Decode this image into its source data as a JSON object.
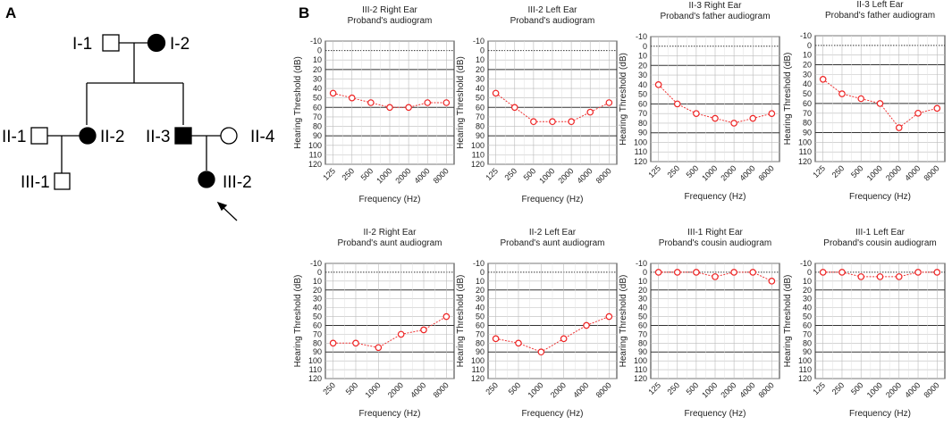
{
  "panels": {
    "a": "A",
    "b": "B"
  },
  "pedigree": {
    "labels": {
      "I1": "I-1",
      "I2": "I-2",
      "II1": "II-1",
      "II2": "II-2",
      "II3": "II-3",
      "II4": "II-4",
      "III1": "III-1",
      "III2": "III-2"
    },
    "affected": [
      "I-2",
      "II-2",
      "II-3",
      "III-2"
    ],
    "proband": "III-2"
  },
  "chart_data": [
    {
      "type": "line",
      "title": "III-2 Right Ear",
      "subtitle": "Proband's audiogram",
      "xlabel": "Frequency (Hz)",
      "ylabel": "Hearing Threshold (dB)",
      "categories": [
        "125",
        "250",
        "500",
        "1000",
        "2000",
        "4000",
        "8000"
      ],
      "values": [
        45,
        50,
        55,
        60,
        60,
        55,
        55
      ],
      "ylim": [
        -10,
        120
      ],
      "y_ticks": [
        "-10",
        "0",
        "10",
        "20",
        "30",
        "40",
        "50",
        "60",
        "70",
        "80",
        "90",
        "100",
        "110",
        "120"
      ]
    },
    {
      "type": "line",
      "title": "III-2 Left Ear",
      "subtitle": "Proband's audiogram",
      "xlabel": "Frequency (Hz)",
      "ylabel": "Hearing Threshold (dB)",
      "categories": [
        "125",
        "250",
        "500",
        "1000",
        "2000",
        "4000",
        "8000"
      ],
      "values": [
        45,
        60,
        75,
        75,
        75,
        65,
        55
      ],
      "ylim": [
        -10,
        120
      ],
      "y_ticks": [
        "-10",
        "0",
        "10",
        "20",
        "30",
        "40",
        "50",
        "60",
        "70",
        "80",
        "90",
        "100",
        "110",
        "120"
      ]
    },
    {
      "type": "line",
      "title": "II-3 Right Ear",
      "subtitle": "Proband's father audiogram",
      "xlabel": "Frequency (Hz)",
      "ylabel": "Hearing Threshold (dB)",
      "categories": [
        "125",
        "250",
        "500",
        "1000",
        "2000",
        "4000",
        "8000"
      ],
      "values": [
        40,
        60,
        70,
        75,
        80,
        75,
        70
      ],
      "ylim": [
        -10,
        120
      ],
      "y_ticks": [
        "-10",
        "0",
        "10",
        "20",
        "30",
        "40",
        "50",
        "60",
        "70",
        "80",
        "90",
        "100",
        "110",
        "120"
      ]
    },
    {
      "type": "line",
      "title": "II-3 Left Ear",
      "subtitle": "Proband's father audiogram",
      "xlabel": "Frequency (Hz)",
      "ylabel": "Hearing Threshold (dB)",
      "categories": [
        "125",
        "250",
        "500",
        "1000",
        "2000",
        "4000",
        "8000"
      ],
      "values": [
        35,
        50,
        55,
        60,
        85,
        70,
        65
      ],
      "ylim": [
        -10,
        120
      ],
      "y_ticks": [
        "-10",
        "0",
        "10",
        "20",
        "30",
        "40",
        "50",
        "60",
        "70",
        "80",
        "90",
        "100",
        "110",
        "120"
      ]
    },
    {
      "type": "line",
      "title": "II-2 Right Ear",
      "subtitle": "Proband's aunt audiogram",
      "xlabel": "Frequency (Hz)",
      "ylabel": "Hearing Threshold (dB)",
      "categories": [
        "250",
        "500",
        "1000",
        "2000",
        "4000",
        "8000"
      ],
      "values": [
        80,
        80,
        85,
        70,
        65,
        50
      ],
      "ylim": [
        -10,
        120
      ],
      "y_ticks": [
        "-10",
        "0",
        "10",
        "20",
        "30",
        "40",
        "50",
        "60",
        "70",
        "80",
        "90",
        "100",
        "110",
        "120"
      ]
    },
    {
      "type": "line",
      "title": "II-2 Left Ear",
      "subtitle": "Proband's aunt audiogram",
      "xlabel": "Frequency (Hz)",
      "ylabel": "Hearing Threshold (dB)",
      "categories": [
        "250",
        "500",
        "1000",
        "2000",
        "4000",
        "8000"
      ],
      "values": [
        75,
        80,
        90,
        75,
        60,
        50
      ],
      "ylim": [
        -10,
        120
      ],
      "y_ticks": [
        "-10",
        "0",
        "10",
        "20",
        "30",
        "40",
        "50",
        "60",
        "70",
        "80",
        "90",
        "100",
        "110",
        "120"
      ]
    },
    {
      "type": "line",
      "title": "III-1 Right Ear",
      "subtitle": "Proband's cousin audiogram",
      "xlabel": "Frequency (Hz)",
      "ylabel": "Hearing Threshold (dB)",
      "categories": [
        "125",
        "250",
        "500",
        "1000",
        "2000",
        "4000",
        "8000"
      ],
      "values": [
        0,
        0,
        0,
        5,
        0,
        0,
        10
      ],
      "ylim": [
        -10,
        120
      ],
      "y_ticks": [
        "-10",
        "0",
        "10",
        "20",
        "30",
        "40",
        "50",
        "60",
        "70",
        "80",
        "90",
        "100",
        "110",
        "120"
      ]
    },
    {
      "type": "line",
      "title": "III-1 Left Ear",
      "subtitle": "Proband's cousin audiogram",
      "xlabel": "Frequency (Hz)",
      "ylabel": "Hearing Threshold (dB)",
      "categories": [
        "125",
        "250",
        "500",
        "1000",
        "2000",
        "4000",
        "8000"
      ],
      "values": [
        0,
        0,
        5,
        5,
        5,
        0,
        0
      ],
      "ylim": [
        -10,
        120
      ],
      "y_ticks": [
        "-10",
        "0",
        "10",
        "20",
        "30",
        "40",
        "50",
        "60",
        "70",
        "80",
        "90",
        "100",
        "110",
        "120"
      ]
    }
  ]
}
